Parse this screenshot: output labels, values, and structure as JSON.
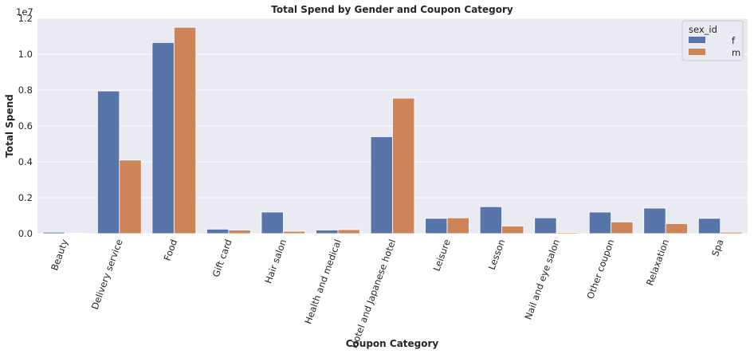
{
  "chart_data": {
    "type": "bar",
    "title": "Total Spend by Gender and Coupon Category",
    "xlabel": "Coupon Category",
    "ylabel": "Total Spend",
    "y_offset_label": "1e7",
    "ylim": [
      0,
      12000000
    ],
    "y_ticks": [
      0,
      2000000,
      4000000,
      6000000,
      8000000,
      10000000,
      12000000
    ],
    "y_tick_labels": [
      "0.0",
      "0.2",
      "0.4",
      "0.6",
      "0.8",
      "1.0",
      "1.2"
    ],
    "grid": true,
    "legend_title": "sex_id",
    "legend_position": "top-right",
    "categories": [
      "Beauty",
      "Delivery service",
      "Food",
      "Gift card",
      "Hair salon",
      "Health and medical",
      "Hotel and Japanese hotel",
      "Leisure",
      "Lesson",
      "Nail and eye salon",
      "Other coupon",
      "Relaxation",
      "Spa"
    ],
    "series": [
      {
        "name": "f",
        "color": "#5875a9",
        "values": [
          80000,
          7950000,
          10650000,
          250000,
          1200000,
          200000,
          5400000,
          850000,
          1500000,
          880000,
          1200000,
          1420000,
          850000
        ]
      },
      {
        "name": "m",
        "color": "#ce8459",
        "values": [
          20000,
          4100000,
          11500000,
          200000,
          130000,
          220000,
          7550000,
          880000,
          420000,
          60000,
          650000,
          560000,
          80000
        ]
      }
    ]
  }
}
